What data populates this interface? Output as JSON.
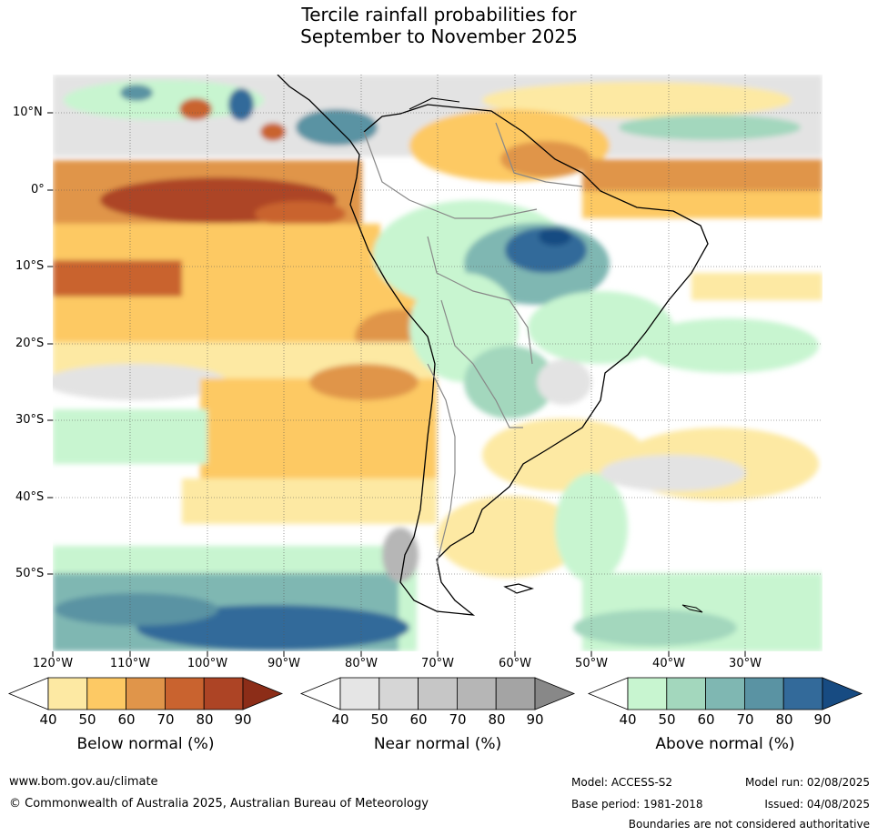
{
  "title_line1": "Tercile rainfall probabilities for",
  "title_line2": "September to November 2025",
  "lat_labels": [
    "10°N",
    "0°",
    "10°S",
    "20°S",
    "30°S",
    "40°S",
    "50°S"
  ],
  "lon_labels": [
    "120°W",
    "110°W",
    "100°W",
    "90°W",
    "80°W",
    "70°W",
    "60°W",
    "50°W",
    "40°W",
    "30°W"
  ],
  "colorbars": [
    {
      "title": "Below normal (%)",
      "ticks": [
        "40",
        "50",
        "60",
        "70",
        "80",
        "90"
      ],
      "colors": [
        "#fde9a3",
        "#fdc964",
        "#e0954a",
        "#c9632f",
        "#ad4425",
        "#8c2d18"
      ]
    },
    {
      "title": "Near normal (%)",
      "ticks": [
        "40",
        "50",
        "60",
        "70",
        "80",
        "90"
      ],
      "colors": [
        "#e5e5e5",
        "#d6d6d6",
        "#c6c6c6",
        "#b6b6b6",
        "#a4a4a4",
        "#888888"
      ]
    },
    {
      "title": "Above normal (%)",
      "ticks": [
        "40",
        "50",
        "60",
        "70",
        "80",
        "90"
      ],
      "colors": [
        "#c8f5d0",
        "#a3d7bd",
        "#7fb7b2",
        "#5a93a3",
        "#336a9a",
        "#174b82"
      ]
    }
  ],
  "footer": {
    "url": "www.bom.gov.au/climate",
    "copyright": "© Commonwealth of Australia 2025, Australian Bureau of Meteorology",
    "model": "Model: ACCESS-S2",
    "base_period": "Base period: 1981-2018",
    "model_run": "Model run: 02/08/2025",
    "issued": "Issued: 04/08/2025",
    "disclaimer": "Boundaries are not considered authoritative"
  }
}
